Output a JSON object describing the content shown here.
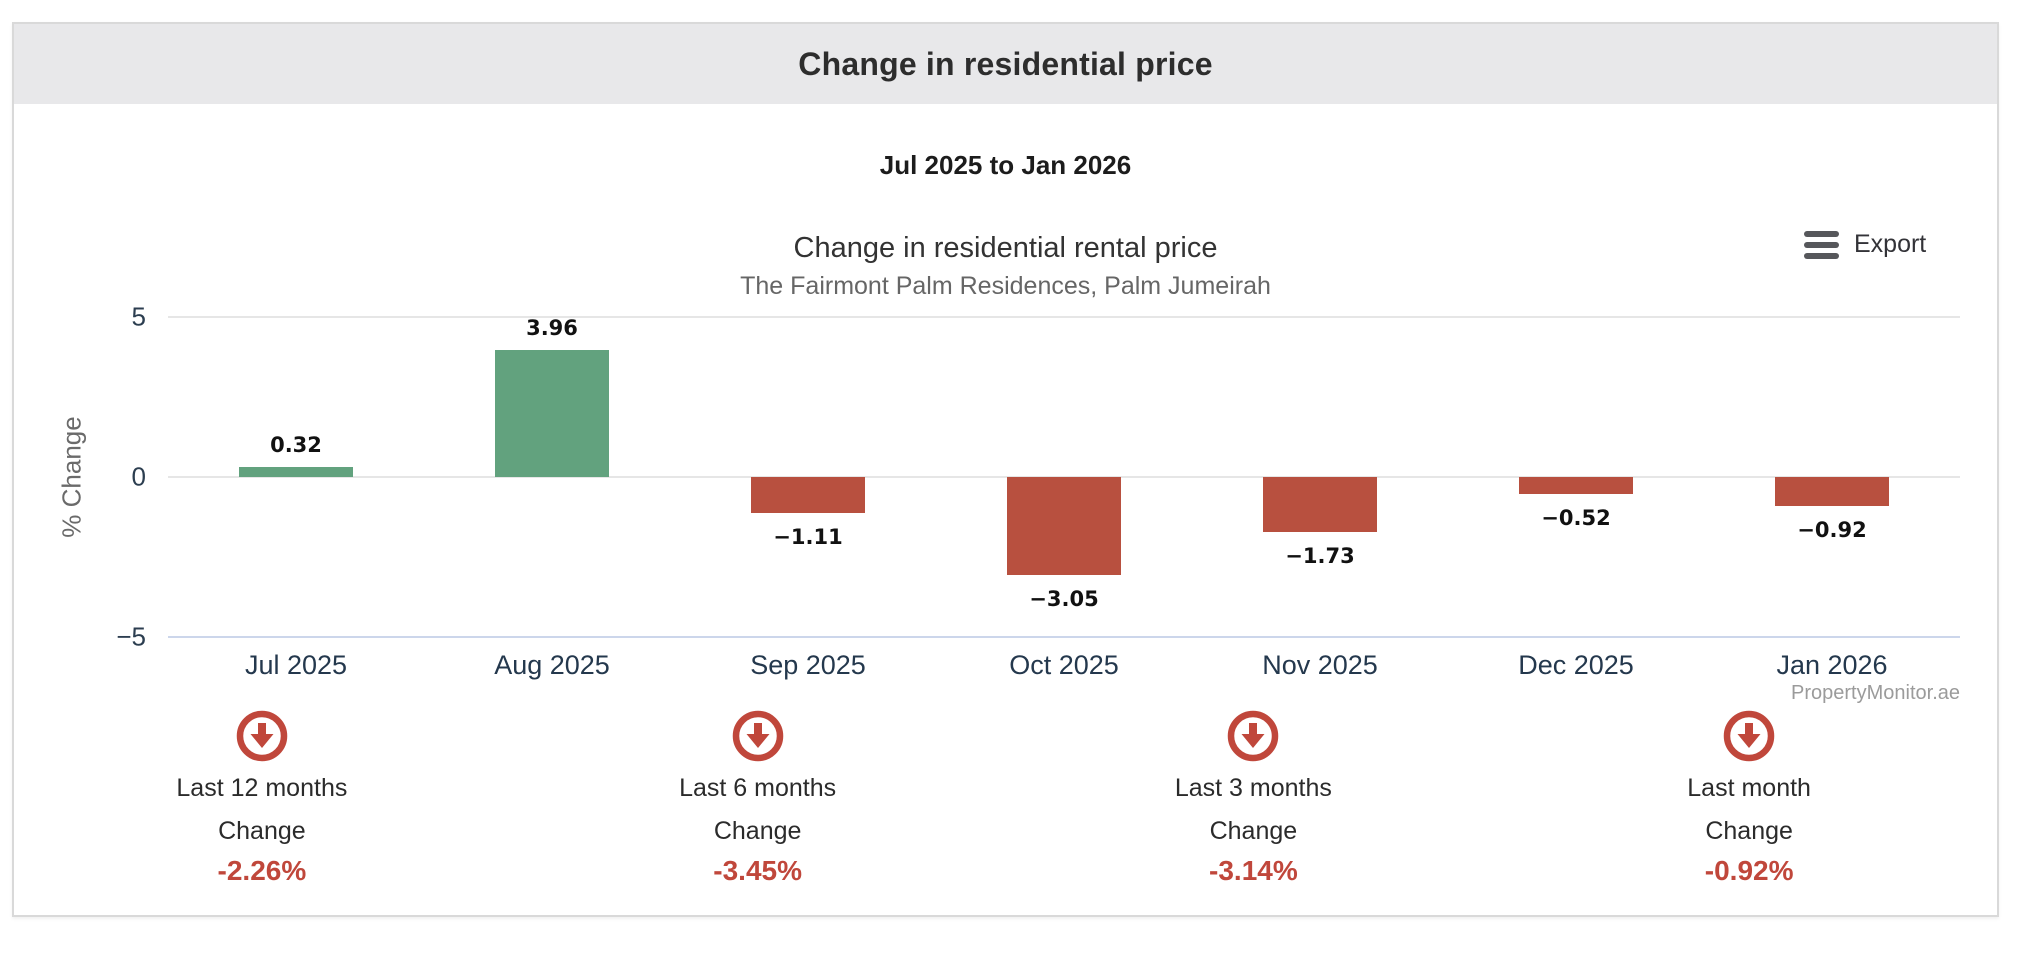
{
  "header": {
    "title": "Change in residential price"
  },
  "period": {
    "label": "Jul 2025 to Jan 2026"
  },
  "chart": {
    "title": "Change in residential rental price",
    "subtitle": "The Fairmont Palm Residences, Palm Jumeirah",
    "export_label": "Export",
    "watermark": "PropertyMonitor.ae"
  },
  "chart_data": {
    "type": "bar",
    "title": "Change in residential rental price",
    "subtitle": "The Fairmont Palm Residences, Palm Jumeirah",
    "categories": [
      "Jul 2025",
      "Aug 2025",
      "Sep 2025",
      "Oct 2025",
      "Nov 2025",
      "Dec 2025",
      "Jan 2026"
    ],
    "values": [
      0.32,
      3.96,
      -1.11,
      -3.05,
      -1.73,
      -0.52,
      -0.92
    ],
    "xlabel": "",
    "ylabel": "% Change",
    "ylim": [
      -5,
      5
    ],
    "y_ticks": [
      5,
      0,
      -5
    ],
    "grid": true,
    "legend": false,
    "positive_color": "#62a27e",
    "negative_color": "#b8503f"
  },
  "summary": {
    "accent_color": "#c0473b",
    "items": [
      {
        "icon": "circle-arrow-down-icon",
        "period": "Last 12 months",
        "label": "Change",
        "value": "-2.26%"
      },
      {
        "icon": "circle-arrow-down-icon",
        "period": "Last 6 months",
        "label": "Change",
        "value": "-3.45%"
      },
      {
        "icon": "circle-arrow-down-icon",
        "period": "Last 3 months",
        "label": "Change",
        "value": "-3.14%"
      },
      {
        "icon": "circle-arrow-down-icon",
        "period": "Last month",
        "label": "Change",
        "value": "-0.92%"
      }
    ]
  }
}
